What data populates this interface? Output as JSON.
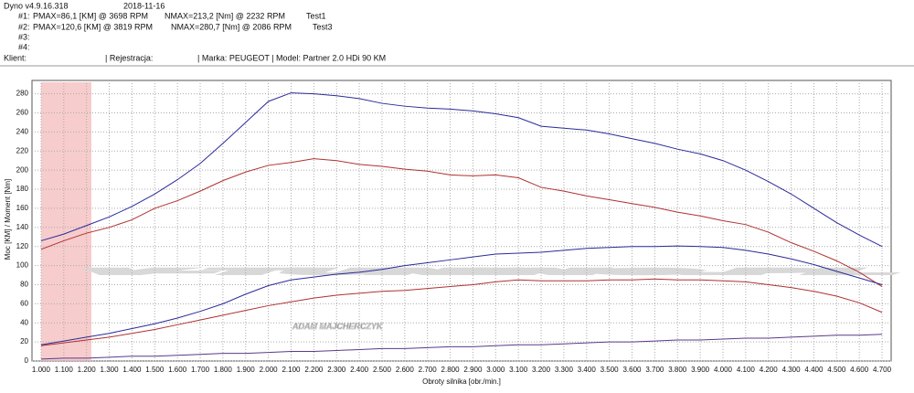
{
  "header": {
    "software": "Dyno v4.9.16.318",
    "date": "2018-11-16",
    "runs": [
      {
        "id": "#1:",
        "pmax": "PMAX=86,1 [KM] @ 3698 RPM",
        "nmax": "NMAX=213,2 [Nm] @ 2232 RPM",
        "name": "Test1"
      },
      {
        "id": "#2:",
        "pmax": "PMAX=120,6 [KM] @ 3819 RPM",
        "nmax": "NMAX=280,7 [Nm] @ 2086 RPM",
        "name": "Test3"
      },
      {
        "id": "#3:"
      },
      {
        "id": "#4:"
      }
    ],
    "client": "Klient:",
    "registration": "| Rejestracja:",
    "vehicle": "| Marka: PEUGEOT | Model: Partner 2.0 HDi 90 KM"
  },
  "chart_data": {
    "type": "line",
    "watermark": {
      "title": "V-TUNING.PL",
      "subtitle": "ADAM MAJCHERCZYK"
    },
    "xlabel": "Obroty silnika [obr./min.]",
    "ylabel": "Moc [KM] / Moment [Nm]",
    "x": [
      1000,
      1100,
      1200,
      1300,
      1400,
      1500,
      1600,
      1700,
      1800,
      1900,
      2000,
      2100,
      2200,
      2300,
      2400,
      2500,
      2600,
      2700,
      2800,
      2900,
      3000,
      3100,
      3200,
      3300,
      3400,
      3500,
      3600,
      3700,
      3800,
      3900,
      4000,
      4100,
      4200,
      4300,
      4400,
      4500,
      4600,
      4700
    ],
    "xlim": [
      960,
      4740
    ],
    "ylim": [
      0,
      294
    ],
    "grid": true,
    "xticks": [
      {
        "value": 1000,
        "label": "1.000"
      },
      {
        "value": 1100,
        "label": "1.100"
      },
      {
        "value": 1200,
        "label": "1.200"
      },
      {
        "value": 1300,
        "label": "1.300"
      },
      {
        "value": 1400,
        "label": "1.400"
      },
      {
        "value": 1500,
        "label": "1.500"
      },
      {
        "value": 1600,
        "label": "1.600"
      },
      {
        "value": 1700,
        "label": "1.700"
      },
      {
        "value": 1800,
        "label": "1.800"
      },
      {
        "value": 1900,
        "label": "1.900"
      },
      {
        "value": 2000,
        "label": "2.000"
      },
      {
        "value": 2100,
        "label": "2.100"
      },
      {
        "value": 2200,
        "label": "2.200"
      },
      {
        "value": 2300,
        "label": "2.300"
      },
      {
        "value": 2400,
        "label": "2.400"
      },
      {
        "value": 2500,
        "label": "2.500"
      },
      {
        "value": 2600,
        "label": "2.600"
      },
      {
        "value": 2700,
        "label": "2.700"
      },
      {
        "value": 2800,
        "label": "2.800"
      },
      {
        "value": 2900,
        "label": "2.900"
      },
      {
        "value": 3000,
        "label": "3.000"
      },
      {
        "value": 3100,
        "label": "3.100"
      },
      {
        "value": 3200,
        "label": "3.200"
      },
      {
        "value": 3300,
        "label": "3.300"
      },
      {
        "value": 3400,
        "label": "3.400"
      },
      {
        "value": 3500,
        "label": "3.500"
      },
      {
        "value": 3600,
        "label": "3.600"
      },
      {
        "value": 3700,
        "label": "3.700"
      },
      {
        "value": 3800,
        "label": "3.800"
      },
      {
        "value": 3900,
        "label": "3.900"
      },
      {
        "value": 4000,
        "label": "4.000"
      },
      {
        "value": 4100,
        "label": "4.100"
      },
      {
        "value": 4200,
        "label": "4.200"
      },
      {
        "value": 4300,
        "label": "4.300"
      },
      {
        "value": 4400,
        "label": "4.400"
      },
      {
        "value": 4500,
        "label": "4.500"
      },
      {
        "value": 4600,
        "label": "4.600"
      },
      {
        "value": 4700,
        "label": "4.700"
      }
    ],
    "yticks": [
      0,
      20,
      40,
      60,
      80,
      100,
      120,
      140,
      160,
      180,
      200,
      220,
      240,
      260,
      280
    ],
    "series": [
      {
        "color": "#2a2a9a",
        "values": [
          126,
          133,
          142,
          151,
          162,
          175,
          190,
          207,
          228,
          250,
          272,
          281,
          280,
          278,
          275,
          270,
          267,
          265,
          264,
          262,
          259,
          255,
          246,
          244,
          242,
          238,
          233,
          228,
          222,
          217,
          210,
          200,
          188,
          175,
          160,
          145,
          132,
          120
        ]
      },
      {
        "color": "#b03030",
        "values": [
          117,
          126,
          134,
          140,
          148,
          160,
          168,
          178,
          189,
          198,
          205,
          208,
          212,
          210,
          206,
          204,
          201,
          199,
          195,
          194,
          195,
          192,
          182,
          178,
          173,
          169,
          165,
          161,
          156,
          152,
          147,
          143,
          135,
          124,
          115,
          105,
          93,
          78
        ]
      },
      {
        "color": "#2a2a9a",
        "values": [
          17,
          21,
          25,
          29,
          34,
          39,
          45,
          52,
          60,
          70,
          79,
          85,
          88,
          91,
          93,
          96,
          100,
          103,
          106,
          109,
          112,
          113,
          114,
          116,
          118,
          119,
          120,
          120,
          120.6,
          120,
          119,
          116,
          112,
          107,
          101,
          94,
          87,
          80
        ]
      },
      {
        "color": "#b03030",
        "values": [
          16,
          19,
          22,
          25,
          29,
          33,
          38,
          43,
          48,
          53,
          58,
          62,
          66,
          69,
          71,
          73,
          74,
          76,
          78,
          80,
          83,
          85,
          84,
          84,
          84,
          85,
          85,
          86,
          85,
          85,
          84,
          83,
          80,
          77,
          73,
          68,
          61,
          51
        ]
      },
      {
        "color": "#5a3a8a",
        "values": [
          2,
          3,
          3,
          4,
          5,
          5,
          6,
          7,
          8,
          8,
          9,
          10,
          10,
          11,
          12,
          13,
          13,
          14,
          15,
          15,
          16,
          17,
          17,
          18,
          19,
          20,
          20,
          21,
          22,
          22,
          23,
          24,
          24,
          25,
          26,
          27,
          27,
          28
        ]
      }
    ]
  }
}
